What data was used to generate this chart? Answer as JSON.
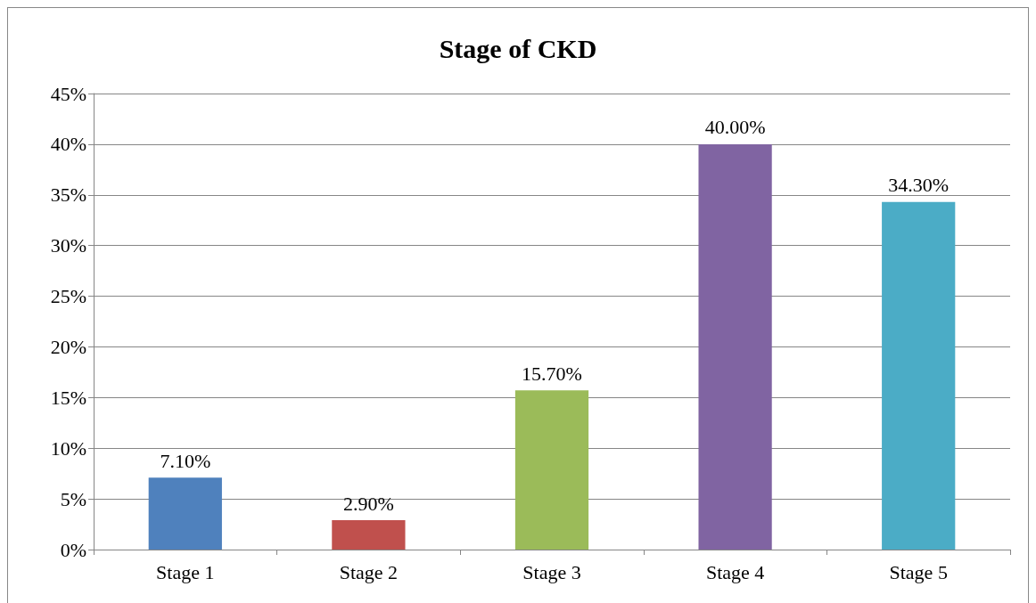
{
  "chart_data": {
    "type": "bar",
    "title": "Stage of CKD",
    "categories": [
      "Stage 1",
      "Stage 2",
      "Stage 3",
      "Stage 4",
      "Stage 5"
    ],
    "values": [
      7.1,
      2.9,
      15.7,
      40,
      34.3
    ],
    "colors": [
      "#4f81bd",
      "#c0504d",
      "#9bbb59",
      "#8064a2",
      "#4bacc6"
    ],
    "value_labels": [
      "7.10%",
      "2.90%",
      "15.70%",
      "40.00%",
      "34.30%"
    ],
    "ylim": [
      0,
      45
    ],
    "yticks": [
      {
        "value": 0,
        "label": "0%"
      },
      {
        "value": 5,
        "label": "5%"
      },
      {
        "value": 10,
        "label": "10%"
      },
      {
        "value": 15,
        "label": "15%"
      },
      {
        "value": 20,
        "label": "20%"
      },
      {
        "value": 25,
        "label": "25%"
      },
      {
        "value": 30,
        "label": "30%"
      },
      {
        "value": 35,
        "label": "35%"
      },
      {
        "value": 40,
        "label": "40%"
      },
      {
        "value": 45,
        "label": "45%"
      }
    ],
    "grid": "y"
  }
}
